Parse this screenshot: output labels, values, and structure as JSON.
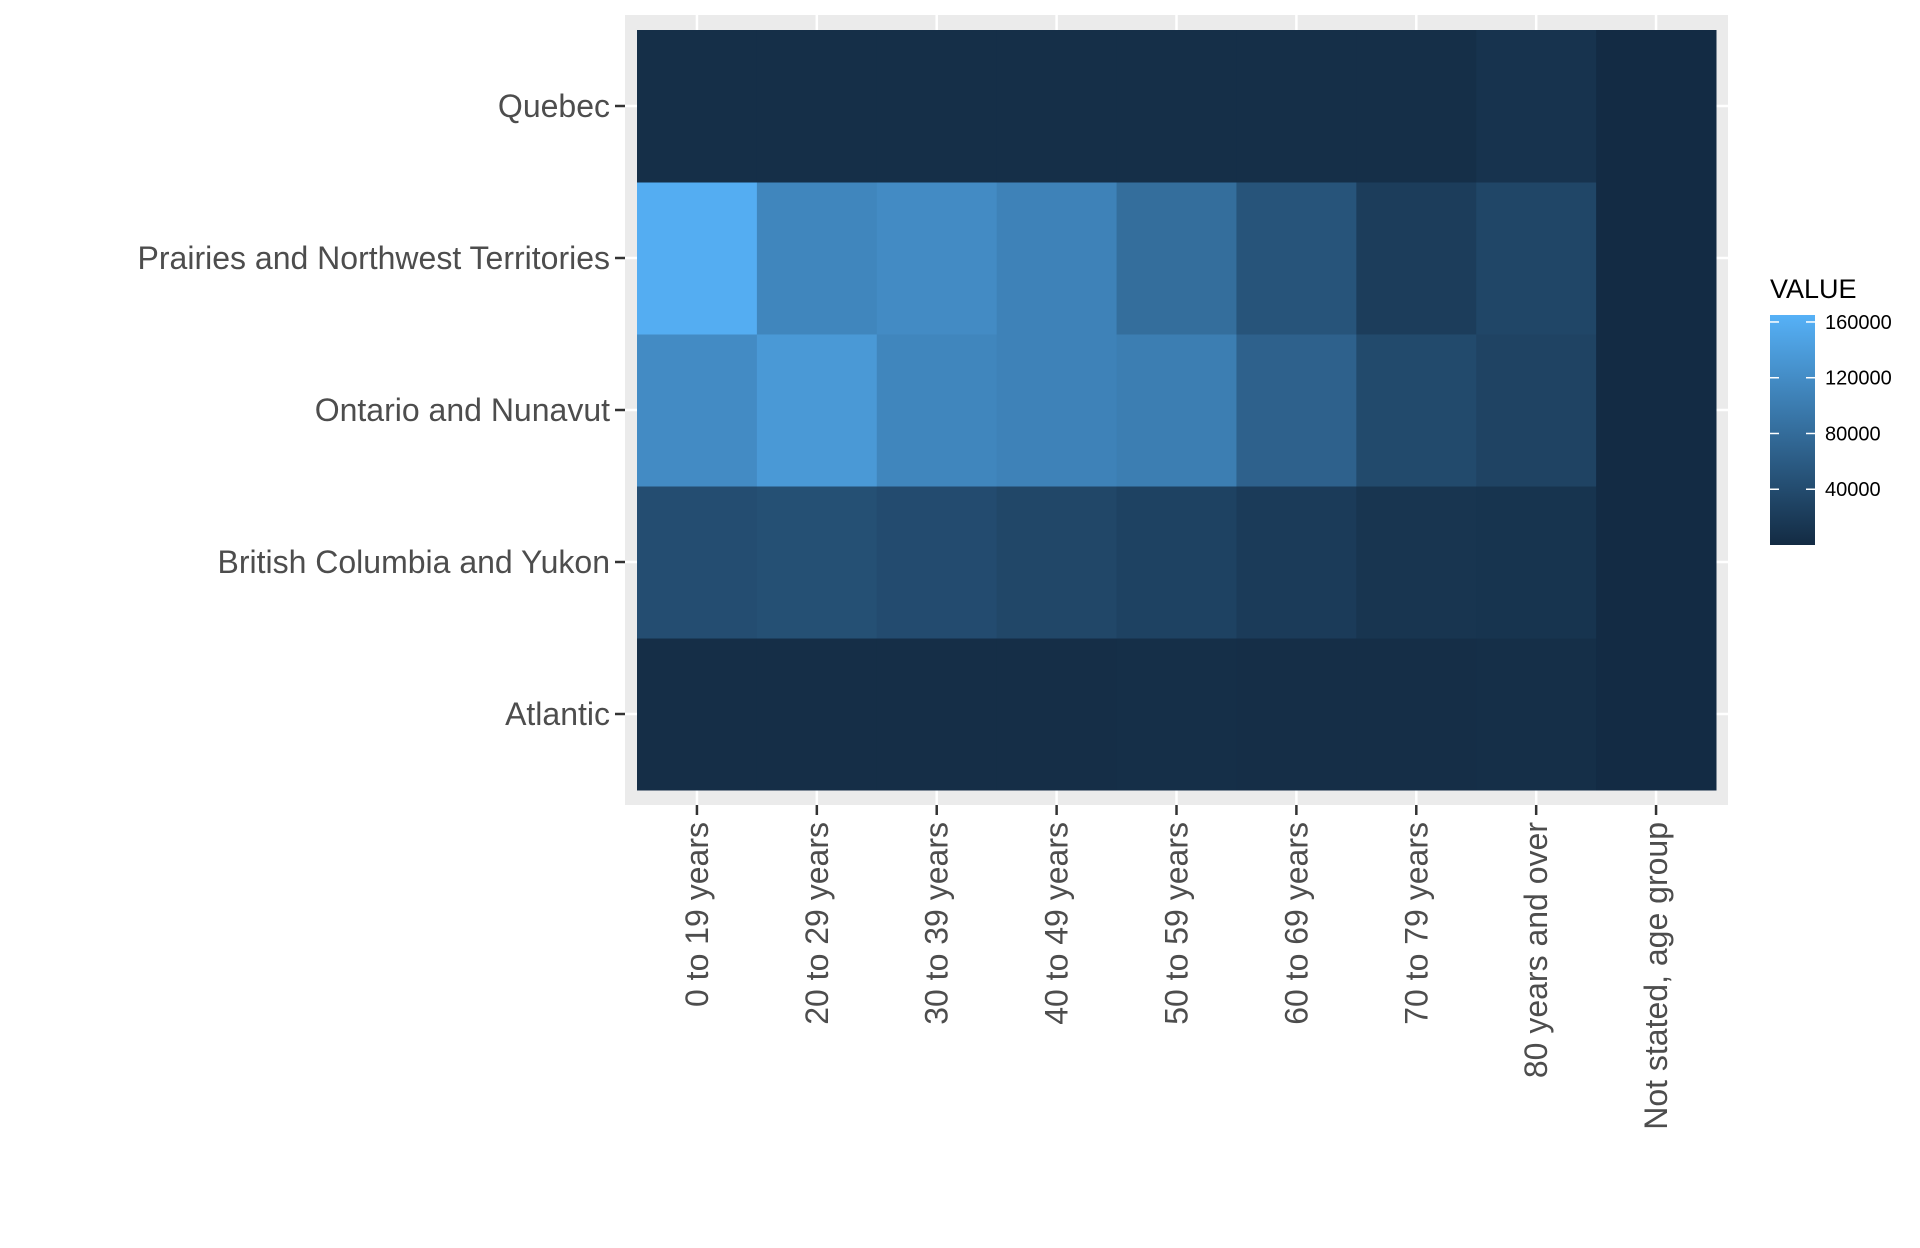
{
  "chart_data": {
    "type": "heatmap",
    "title": "",
    "xlabel": "",
    "ylabel": "",
    "x_categories": [
      "0 to 19 years",
      "20 to 29 years",
      "30 to 39 years",
      "40 to 49 years",
      "50 to 59 years",
      "60 to 69 years",
      "70 to 79 years",
      "80 years and over",
      "Not stated, age group"
    ],
    "y_categories": [
      "Atlantic",
      "British Columbia and Yukon",
      "Ontario and Nunavut",
      "Prairies and Northwest Territories",
      "Quebec"
    ],
    "values": [
      [
        4000,
        4000,
        4000,
        4000,
        5000,
        4000,
        4000,
        5000,
        500
      ],
      [
        42000,
        45000,
        40000,
        34000,
        28000,
        20000,
        12000,
        11000,
        500
      ],
      [
        118000,
        135000,
        112000,
        107000,
        102000,
        67000,
        38000,
        29000,
        500
      ],
      [
        160000,
        112000,
        118000,
        107000,
        82000,
        50000,
        22000,
        33000,
        500
      ],
      [
        5000,
        5000,
        5000,
        5000,
        5000,
        5000,
        5000,
        10000,
        500
      ]
    ],
    "color_scale": {
      "low": "#132B43",
      "high": "#56B1F7",
      "min": 0,
      "max": 165000
    },
    "legend": {
      "title": "VALUE",
      "ticks": [
        40000,
        80000,
        120000,
        160000
      ],
      "tick_labels": [
        "40000",
        "80000",
        "120000",
        "160000"
      ],
      "position": "right"
    },
    "grid": true,
    "panel_background": "#EBEBEB"
  }
}
